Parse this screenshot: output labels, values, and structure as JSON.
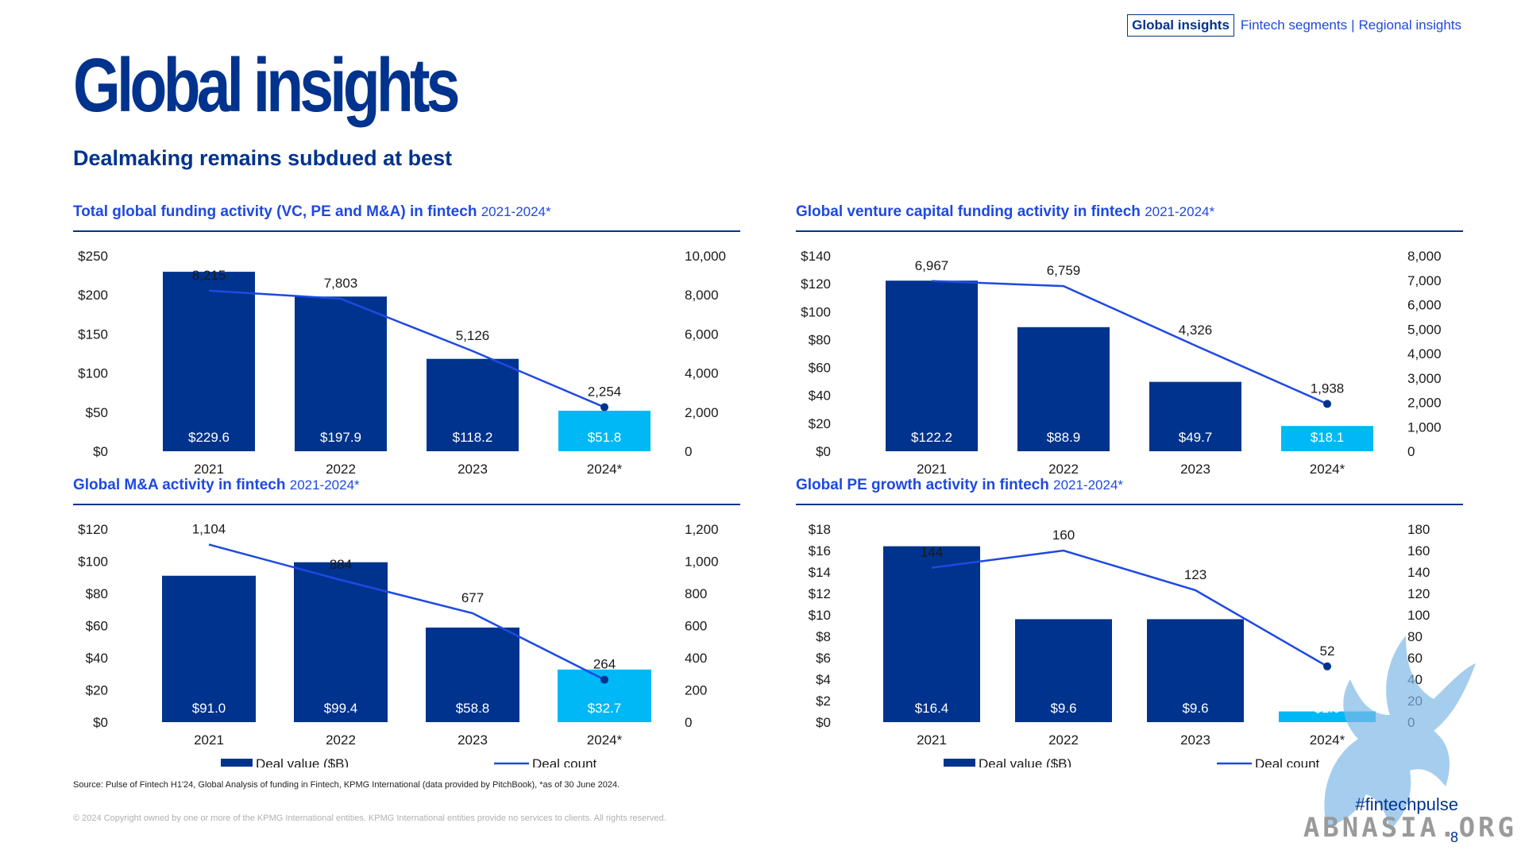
{
  "nav": {
    "active": "Global insights",
    "links": [
      "Fintech segments",
      "Regional insights"
    ],
    "separator": "|"
  },
  "page": {
    "title": "Global insights",
    "subtitle": "Dealmaking remains subdued at best",
    "source": "Source: Pulse of Fintech H1'24, Global Analysis of funding in Fintech, KPMG International (data provided by PitchBook), *as of 30 June 2024.",
    "copyright": "© 2024 Copyright owned by one or more of the KPMG International entities. KPMG International entities provide no services to clients. All rights reserved.",
    "hashtag": "#fintechpulse",
    "watermark": "ABNASIA.ORG",
    "page_number": "8"
  },
  "colors": {
    "bar": "#00338d",
    "bar_highlight": "#00b8f5",
    "line": "#1e49e2",
    "title": "#00338d",
    "accent": "#1e49e2"
  },
  "chart_data": [
    {
      "type": "bar",
      "title": "Total global funding activity (VC, PE and M&A) in fintech",
      "title_years": "2021-2024*",
      "categories": [
        "2021",
        "2022",
        "2023",
        "2024*"
      ],
      "series": [
        {
          "name": "Deal value ($B)",
          "type": "bar",
          "values": [
            229.6,
            197.9,
            118.2,
            51.8
          ],
          "labels": [
            "$229.6",
            "$197.9",
            "$118.2",
            "$51.8"
          ]
        },
        {
          "name": "Deal count",
          "type": "line",
          "values": [
            8215,
            7803,
            5126,
            2254
          ],
          "labels": [
            "8,215",
            "7,803",
            "5,126",
            "2,254"
          ]
        }
      ],
      "ylim": [
        0,
        250
      ],
      "y_ticks": [
        "$0",
        "$50",
        "$100",
        "$150",
        "$200",
        "$250"
      ],
      "y2lim": [
        0,
        10000
      ],
      "y2_ticks": [
        "0",
        "2,000",
        "4,000",
        "6,000",
        "8,000",
        "10,000"
      ],
      "legend": [
        "Deal value ($B)",
        "Deal count"
      ],
      "legend_position": "bottom"
    },
    {
      "type": "bar",
      "title": "Global venture capital funding activity in fintech",
      "title_years": "2021-2024*",
      "categories": [
        "2021",
        "2022",
        "2023",
        "2024*"
      ],
      "series": [
        {
          "name": "Deal value ($B)",
          "type": "bar",
          "values": [
            122.2,
            88.9,
            49.7,
            18.1
          ],
          "labels": [
            "$122.2",
            "$88.9",
            "$49.7",
            "$18.1"
          ]
        },
        {
          "name": "Deal count",
          "type": "line",
          "values": [
            6967,
            6759,
            4326,
            1938
          ],
          "labels": [
            "6,967",
            "6,759",
            "4,326",
            "1,938"
          ]
        }
      ],
      "ylim": [
        0,
        140
      ],
      "y_ticks": [
        "$0",
        "$20",
        "$40",
        "$60",
        "$80",
        "$100",
        "$120",
        "$140"
      ],
      "y2lim": [
        0,
        8000
      ],
      "y2_ticks": [
        "0",
        "1,000",
        "2,000",
        "3,000",
        "4,000",
        "5,000",
        "6,000",
        "7,000",
        "8,000"
      ],
      "legend": [
        "Deal value ($B)",
        "Deal count"
      ],
      "legend_position": "bottom"
    },
    {
      "type": "bar",
      "title": "Global M&A activity in fintech",
      "title_years": "2021-2024*",
      "categories": [
        "2021",
        "2022",
        "2023",
        "2024*"
      ],
      "series": [
        {
          "name": "Deal value ($B)",
          "type": "bar",
          "values": [
            91.0,
            99.4,
            58.8,
            32.7
          ],
          "labels": [
            "$91.0",
            "$99.4",
            "$58.8",
            "$32.7"
          ]
        },
        {
          "name": "Deal count",
          "type": "line",
          "values": [
            1104,
            884,
            677,
            264
          ],
          "labels": [
            "1,104",
            "884",
            "677",
            "264"
          ]
        }
      ],
      "ylim": [
        0,
        120
      ],
      "y_ticks": [
        "$0",
        "$20",
        "$40",
        "$60",
        "$80",
        "$100",
        "$120"
      ],
      "y2lim": [
        0,
        1200
      ],
      "y2_ticks": [
        "0",
        "200",
        "400",
        "600",
        "800",
        "1,000",
        "1,200"
      ],
      "legend": [
        "Deal value ($B)",
        "Deal count"
      ],
      "legend_position": "bottom"
    },
    {
      "type": "bar",
      "title": "Global PE growth activity in fintech",
      "title_years": "2021-2024*",
      "categories": [
        "2021",
        "2022",
        "2023",
        "2024*"
      ],
      "series": [
        {
          "name": "Deal value ($B)",
          "type": "bar",
          "values": [
            16.4,
            9.6,
            9.6,
            1.0
          ],
          "labels": [
            "$16.4",
            "$9.6",
            "$9.6",
            "$1.0"
          ]
        },
        {
          "name": "Deal count",
          "type": "line",
          "values": [
            144,
            160,
            123,
            52
          ],
          "labels": [
            "144",
            "160",
            "123",
            "52"
          ]
        }
      ],
      "ylim": [
        0,
        18
      ],
      "y_ticks": [
        "$0",
        "$2",
        "$4",
        "$6",
        "$8",
        "$10",
        "$12",
        "$14",
        "$16",
        "$18"
      ],
      "y2lim": [
        0,
        180
      ],
      "y2_ticks": [
        "0",
        "20",
        "40",
        "60",
        "80",
        "100",
        "120",
        "140",
        "160",
        "180"
      ],
      "legend": [
        "Deal value ($B)",
        "Deal count"
      ],
      "legend_position": "bottom"
    }
  ]
}
